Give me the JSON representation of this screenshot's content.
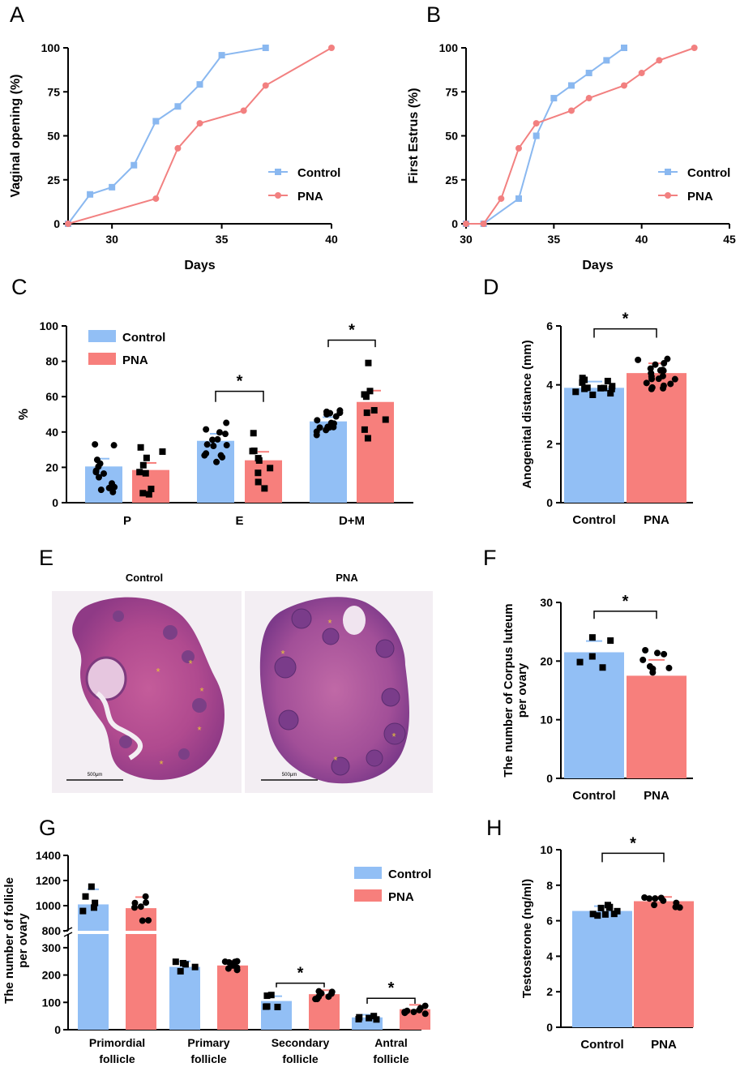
{
  "colors": {
    "control": "#92bff5",
    "pna": "#f77f7c",
    "control_line": "#8ab8f0",
    "pna_line": "#f28080"
  },
  "panel_letters": [
    "A",
    "B",
    "C",
    "D",
    "E",
    "F",
    "G",
    "H"
  ],
  "legend": {
    "control": "Control",
    "pna": "PNA"
  },
  "chart_data": [
    {
      "id": "A",
      "type": "line",
      "xlabel": "Days",
      "ylabel": "Vaginal opening (%)",
      "xlim": [
        28,
        40
      ],
      "ylim": [
        0,
        100
      ],
      "xticks": [
        30,
        35,
        40
      ],
      "yticks": [
        0,
        25,
        50,
        75,
        100
      ],
      "series": [
        {
          "name": "Control",
          "x": [
            28,
            29,
            30,
            31,
            32,
            33,
            34,
            35,
            37
          ],
          "y": [
            0,
            16.7,
            20.8,
            33.3,
            58.3,
            66.7,
            79.2,
            95.8,
            100
          ]
        },
        {
          "name": "PNA",
          "x": [
            28,
            32,
            33,
            34,
            36,
            37,
            40
          ],
          "y": [
            0,
            14.3,
            42.9,
            57.1,
            64.3,
            78.6,
            100
          ]
        }
      ]
    },
    {
      "id": "B",
      "type": "line",
      "xlabel": "Days",
      "ylabel": "First Estrus (%)",
      "xlim": [
        30,
        45
      ],
      "ylim": [
        0,
        100
      ],
      "xticks": [
        30,
        35,
        40,
        45
      ],
      "yticks": [
        0,
        25,
        50,
        75,
        100
      ],
      "series": [
        {
          "name": "Control",
          "x": [
            30,
            31,
            33,
            34,
            35,
            36,
            37,
            38,
            39
          ],
          "y": [
            0,
            0,
            14.3,
            50,
            71.4,
            78.6,
            85.7,
            92.9,
            100
          ]
        },
        {
          "name": "PNA",
          "x": [
            30,
            31,
            32,
            33,
            34,
            36,
            37,
            39,
            40,
            41,
            43
          ],
          "y": [
            0,
            0,
            14.3,
            42.9,
            57.1,
            64.3,
            71.4,
            78.6,
            85.7,
            92.9,
            100
          ]
        }
      ]
    },
    {
      "id": "C",
      "type": "bar",
      "ylabel": "%",
      "ylim": [
        0,
        100
      ],
      "yticks": [
        0,
        20,
        40,
        60,
        80,
        100
      ],
      "categories": [
        "P",
        "E",
        "D+M"
      ],
      "series": [
        {
          "name": "Control",
          "values": [
            20.5,
            35,
            46
          ]
        },
        {
          "name": "PNA",
          "values": [
            18.5,
            24,
            57
          ]
        }
      ],
      "significance": [
        {
          "category": "E",
          "label": "*"
        },
        {
          "category": "D+M",
          "label": "*"
        }
      ]
    },
    {
      "id": "D",
      "type": "bar",
      "ylabel": "Anogenital distance (mm)",
      "ylim": [
        0,
        6
      ],
      "yticks": [
        0,
        2,
        4,
        6
      ],
      "categories": [
        "Control",
        "PNA"
      ],
      "values": [
        3.9,
        4.4
      ],
      "significance": "*"
    },
    {
      "id": "F",
      "type": "bar",
      "ylabel": "The number of Corpus luteum per ovary",
      "ylim": [
        0,
        30
      ],
      "yticks": [
        0,
        10,
        20,
        30
      ],
      "categories": [
        "Control",
        "PNA"
      ],
      "values": [
        21.5,
        17.5
      ],
      "significance": "*"
    },
    {
      "id": "G",
      "type": "bar",
      "ylabel": "The number of follicle per ovary",
      "ylim": [
        0,
        1400
      ],
      "axis_break": [
        350,
        800
      ],
      "yticks": [
        0,
        100,
        200,
        300,
        800,
        1000,
        1200,
        1400
      ],
      "categories": [
        "Primordial follicle",
        "Primary follicle",
        "Secondary follicle",
        "Antral follicle"
      ],
      "series": [
        {
          "name": "Control",
          "values": [
            1010,
            230,
            105,
            45
          ]
        },
        {
          "name": "PNA",
          "values": [
            980,
            235,
            130,
            75
          ]
        }
      ],
      "significance": [
        {
          "category": "Secondary follicle",
          "label": "*"
        },
        {
          "category": "Antral follicle",
          "label": "*"
        }
      ]
    },
    {
      "id": "H",
      "type": "bar",
      "ylabel": "Testosterone (ng/ml)",
      "ylim": [
        0,
        10
      ],
      "yticks": [
        0,
        2,
        4,
        6,
        8,
        10
      ],
      "categories": [
        "Control",
        "PNA"
      ],
      "values": [
        6.55,
        7.1
      ],
      "significance": "*"
    }
  ],
  "histology": {
    "control_title": "Control",
    "pna_title": "PNA",
    "scale_bar": "500μm"
  }
}
